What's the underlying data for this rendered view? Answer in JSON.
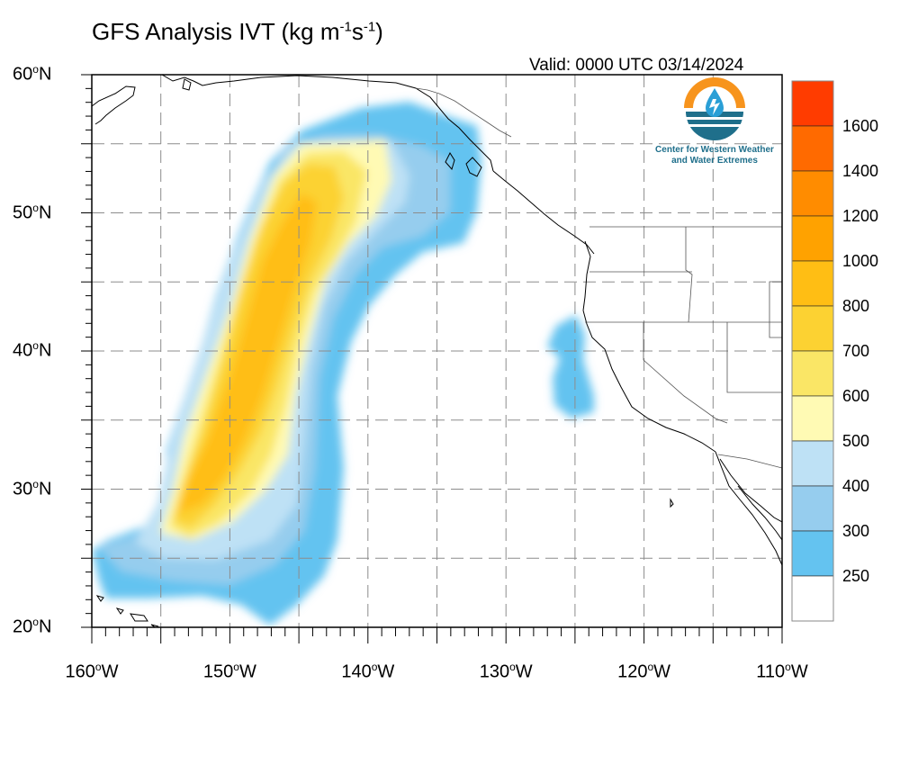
{
  "title": {
    "main": "GFS Analysis IVT (kg m",
    "sup1": "-1",
    "mid": "s",
    "sup2": "-1",
    "end": ")"
  },
  "valid_label": "Valid: 0000 UTC 03/14/2024",
  "logo": {
    "line1": "Center for Western Weather",
    "line2": "and Water Extremes",
    "icon": "water-drop-sun-icon"
  },
  "degree_mark": "o",
  "lat_labels": [
    {
      "value": "60",
      "suffix": "N"
    },
    {
      "value": "50",
      "suffix": "N"
    },
    {
      "value": "40",
      "suffix": "N"
    },
    {
      "value": "30",
      "suffix": "N"
    },
    {
      "value": "20",
      "suffix": "N"
    }
  ],
  "lon_labels": [
    {
      "value": "160",
      "suffix": "W"
    },
    {
      "value": "150",
      "suffix": "W"
    },
    {
      "value": "140",
      "suffix": "W"
    },
    {
      "value": "130",
      "suffix": "W"
    },
    {
      "value": "120",
      "suffix": "W"
    },
    {
      "value": "110",
      "suffix": "W"
    }
  ],
  "colorbar": {
    "levels": [
      "1600",
      "1400",
      "1200",
      "1000",
      "800",
      "700",
      "600",
      "500",
      "400",
      "300",
      "250"
    ],
    "colors": [
      "#ff3c00",
      "#ff6a00",
      "#ff8c00",
      "#ffa200",
      "#ffbe14",
      "#fcd232",
      "#fae666",
      "#fffab4",
      "#bee1f5",
      "#96cdee",
      "#64c3f0",
      "#ffffff"
    ]
  },
  "map": {
    "lon_range": [
      -160,
      -110
    ],
    "lat_range": [
      20,
      60
    ],
    "grid": "dashed",
    "grid_color": "#8c8c8c",
    "coast_color": "#000000"
  }
}
